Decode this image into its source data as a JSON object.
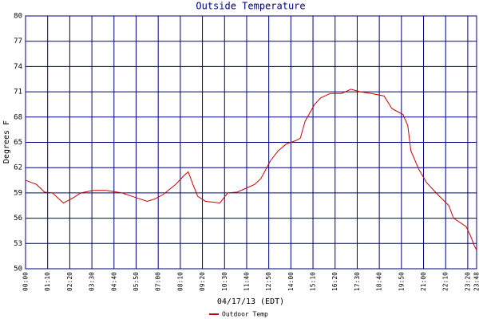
{
  "chart_data": {
    "type": "line",
    "title": "Outside Temperature",
    "x_label": "04/17/13 (EDT)",
    "y_label": "Degrees F",
    "x": [
      0,
      35,
      60,
      85,
      120,
      150,
      175,
      215,
      255,
      305,
      345,
      385,
      410,
      435,
      475,
      500,
      515,
      530,
      545,
      570,
      595,
      615,
      640,
      670,
      695,
      725,
      745,
      775,
      800,
      825,
      855,
      870,
      885,
      915,
      935,
      965,
      1000,
      1030,
      1060,
      1095,
      1135,
      1160,
      1195,
      1210,
      1220,
      1245,
      1270,
      1305,
      1340,
      1355,
      1395,
      1410,
      1420,
      1428
    ],
    "series": [
      {
        "name": "Outdoor Temp",
        "color": "#cc0000",
        "values": [
          60.5,
          60.0,
          59.1,
          59.0,
          57.8,
          58.4,
          59.0,
          59.3,
          59.3,
          59.0,
          58.5,
          58.0,
          58.3,
          58.8,
          60.0,
          61.0,
          61.5,
          60.0,
          58.6,
          58.0,
          57.9,
          57.8,
          59.0,
          59.1,
          59.5,
          60.0,
          60.7,
          62.8,
          64.0,
          64.8,
          65.2,
          65.5,
          67.5,
          69.5,
          70.3,
          70.8,
          70.8,
          71.3,
          71.0,
          70.8,
          70.5,
          69.0,
          68.3,
          67.0,
          64.0,
          61.8,
          60.2,
          58.8,
          57.5,
          56.0,
          55.0,
          53.8,
          52.8,
          52.2
        ]
      }
    ],
    "xlim": [
      0,
      1428
    ],
    "xticks": [
      {
        "value": 0,
        "label": "00:00"
      },
      {
        "value": 70,
        "label": "01:10"
      },
      {
        "value": 140,
        "label": "02:20"
      },
      {
        "value": 210,
        "label": "03:30"
      },
      {
        "value": 280,
        "label": "04:40"
      },
      {
        "value": 350,
        "label": "05:50"
      },
      {
        "value": 420,
        "label": "07:00"
      },
      {
        "value": 490,
        "label": "08:10"
      },
      {
        "value": 560,
        "label": "09:20"
      },
      {
        "value": 630,
        "label": "10:30"
      },
      {
        "value": 700,
        "label": "11:40"
      },
      {
        "value": 770,
        "label": "12:50"
      },
      {
        "value": 840,
        "label": "14:00"
      },
      {
        "value": 910,
        "label": "15:10"
      },
      {
        "value": 980,
        "label": "16:20"
      },
      {
        "value": 1050,
        "label": "17:30"
      },
      {
        "value": 1120,
        "label": "18:40"
      },
      {
        "value": 1190,
        "label": "19:50"
      },
      {
        "value": 1260,
        "label": "21:00"
      },
      {
        "value": 1330,
        "label": "22:10"
      },
      {
        "value": 1400,
        "label": "23:20"
      },
      {
        "value": 1428,
        "label": "23:48"
      }
    ],
    "ylim": [
      50,
      80
    ],
    "yticks": [
      50,
      53,
      56,
      59,
      62,
      65,
      68,
      71,
      74,
      77,
      80
    ],
    "grid": true,
    "grid_color": "#000080",
    "legend": "bottom"
  }
}
